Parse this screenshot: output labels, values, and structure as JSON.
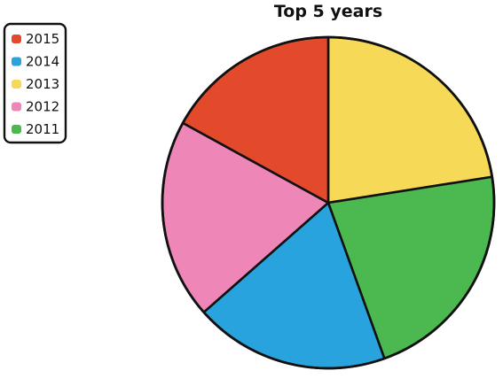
{
  "chart_data": {
    "type": "pie",
    "title": "Top 5 years",
    "legend": "top-left",
    "start_angle_deg": 90,
    "direction": "clockwise",
    "slices": [
      {
        "label": "2013",
        "value": 22.5,
        "color": "#f5d957"
      },
      {
        "label": "2011",
        "value": 22.0,
        "color": "#4cb850"
      },
      {
        "label": "2014",
        "value": 19.0,
        "color": "#29a3dd"
      },
      {
        "label": "2012",
        "value": 19.5,
        "color": "#ee86b8"
      },
      {
        "label": "2015",
        "value": 17.0,
        "color": "#e24a2b"
      }
    ],
    "legend_order": [
      "2015",
      "2014",
      "2013",
      "2012",
      "2011"
    ]
  }
}
